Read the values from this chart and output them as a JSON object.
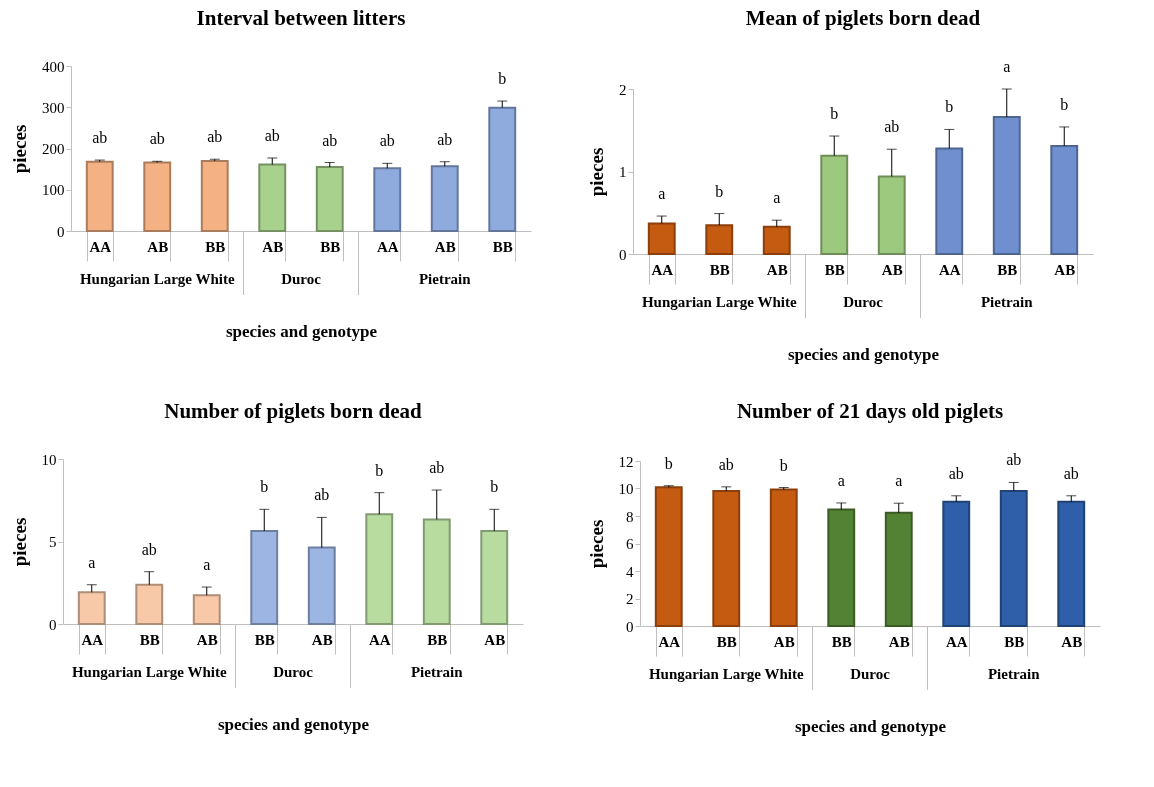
{
  "chart_data": [
    {
      "type": "bar",
      "title": "Interval between litters",
      "xlabel": "species and genotype",
      "ylabel": "pieces",
      "categories": [
        "AA",
        "AB",
        "BB",
        "AB",
        "BB",
        "AA",
        "AB",
        "BB"
      ],
      "values": [
        168,
        166,
        170,
        161,
        155,
        152,
        157,
        299
      ],
      "errors": [
        [
          168,
          172
        ],
        [
          166,
          169
        ],
        [
          170,
          174
        ],
        [
          161,
          177
        ],
        [
          155,
          166
        ],
        [
          152,
          164
        ],
        [
          157,
          168
        ],
        [
          299,
          315
        ]
      ],
      "colors": [
        "#f4b183",
        "#f4b183",
        "#f4b183",
        "#a9d18e",
        "#a9d18e",
        "#8faadc",
        "#8faadc",
        "#8faadc"
      ],
      "ylim": [
        0,
        400
      ],
      "yticks": [
        0,
        100,
        200,
        300,
        400
      ],
      "annotations": [
        "ab",
        "ab",
        "ab",
        "ab",
        "ab",
        "ab",
        "ab",
        "b",
        "Hungarian Large White",
        "Duroc",
        "Pietrain"
      ]
    },
    {
      "type": "bar",
      "title": "Mean of piglets born dead",
      "xlabel": "species and genotype",
      "ylabel": "pieces",
      "categories": [
        "AA",
        "BB",
        "AB",
        "BB",
        "AB",
        "AA",
        "BB",
        "AB"
      ],
      "values": [
        0.37,
        0.35,
        0.33,
        1.19,
        0.94,
        1.28,
        1.66,
        1.31
      ],
      "errors": [
        [
          0.37,
          0.46
        ],
        [
          0.35,
          0.49
        ],
        [
          0.33,
          0.41
        ],
        [
          1.19,
          1.43
        ],
        [
          0.94,
          1.27
        ],
        [
          1.28,
          1.51
        ],
        [
          1.66,
          2.0
        ],
        [
          1.31,
          1.54
        ]
      ],
      "colors": [
        "#c55a11",
        "#c55a11",
        "#c55a11",
        "#9dc97f",
        "#9dc97f",
        "#6f8fcf",
        "#6f8fcf",
        "#6f8fcf"
      ],
      "ylim": [
        0,
        2
      ],
      "yticks": [
        0,
        1,
        2
      ],
      "annotations": [
        "a",
        "b",
        "a",
        "b",
        "ab",
        "b",
        "a",
        "b",
        "Hungarian Large White",
        "Duroc",
        "Pietrain"
      ]
    },
    {
      "type": "bar",
      "title": "Number of piglets born dead",
      "xlabel": "species and genotype",
      "ylabel": "pieces",
      "categories": [
        "AA",
        "BB",
        "AB",
        "BB",
        "AB",
        "AA",
        "BB",
        "AB"
      ],
      "values": [
        1.92,
        2.38,
        1.74,
        5.64,
        4.63,
        6.65,
        6.34,
        5.64
      ],
      "errors": [
        [
          1.92,
          2.38
        ],
        [
          2.38,
          3.17
        ],
        [
          1.74,
          2.24
        ],
        [
          5.64,
          6.95
        ],
        [
          4.63,
          6.46
        ],
        [
          6.65,
          7.96
        ],
        [
          6.34,
          8.12
        ],
        [
          5.64,
          6.95
        ]
      ],
      "colors": [
        "#f8c9a8",
        "#f8c9a8",
        "#f8c9a8",
        "#9db5e3",
        "#9db5e3",
        "#b8dca0",
        "#b8dca0",
        "#b8dca0"
      ],
      "ylim": [
        0,
        10
      ],
      "yticks": [
        0,
        5,
        10
      ],
      "annotations": [
        "a",
        "ab",
        "a",
        "b",
        "ab",
        "b",
        "ab",
        "b",
        "Hungarian Large White",
        "Duroc",
        "Pietrain"
      ]
    },
    {
      "type": "bar",
      "title": "Number of 21 days old piglets",
      "xlabel": "species and genotype",
      "ylabel": "pieces",
      "categories": [
        "AA",
        "BB",
        "AB",
        "BB",
        "AB",
        "AA",
        "BB",
        "AB"
      ],
      "values": [
        10.09,
        9.82,
        9.92,
        8.48,
        8.23,
        9.03,
        9.82,
        9.03
      ],
      "errors": [
        [
          10.09,
          10.2
        ],
        [
          9.82,
          10.12
        ],
        [
          9.92,
          10.07
        ],
        [
          8.48,
          8.95
        ],
        [
          8.23,
          8.93
        ],
        [
          9.03,
          9.47
        ],
        [
          9.82,
          10.44
        ],
        [
          9.03,
          9.47
        ]
      ],
      "colors": [
        "#c55a11",
        "#c55a11",
        "#c55a11",
        "#548235",
        "#548235",
        "#2e5fa8",
        "#2e5fa8",
        "#2e5fa8"
      ],
      "ylim": [
        0,
        12
      ],
      "yticks": [
        0,
        2,
        4,
        6,
        8,
        10,
        12
      ],
      "annotations": [
        "b",
        "ab",
        "b",
        "a",
        "a",
        "ab",
        "ab",
        "ab",
        "Hungarian Large White",
        "Duroc",
        "Pietrain"
      ]
    }
  ]
}
